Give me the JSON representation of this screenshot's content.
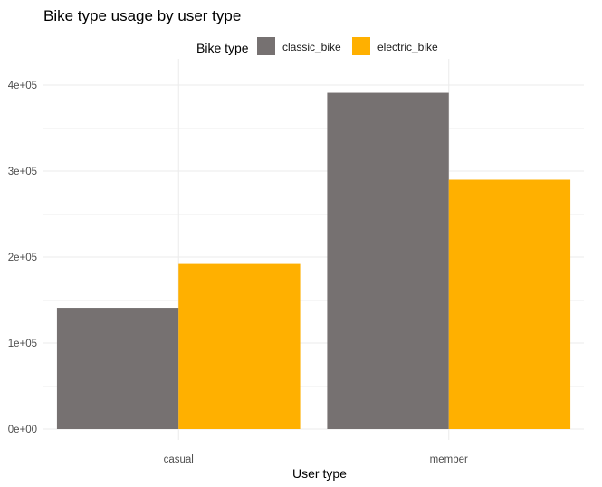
{
  "chart_data": {
    "type": "bar",
    "title": "Bike type usage by user type",
    "xlabel": "User type",
    "ylabel": "",
    "categories": [
      "casual",
      "member"
    ],
    "series": [
      {
        "name": "classic_bike",
        "values": [
          141000,
          391000
        ],
        "color": "#767171"
      },
      {
        "name": "electric_bike",
        "values": [
          192000,
          290000
        ],
        "color": "#FFB000"
      }
    ],
    "ylim": [
      0,
      420000
    ],
    "y_ticks": [
      0,
      100000,
      200000,
      300000,
      400000
    ],
    "y_tick_labels": [
      "0e+00",
      "1e+05",
      "2e+05",
      "3e+05",
      "4e+05"
    ],
    "legend": {
      "title": "Bike type",
      "position": "top"
    },
    "grid": true,
    "background": "#ffffff"
  }
}
